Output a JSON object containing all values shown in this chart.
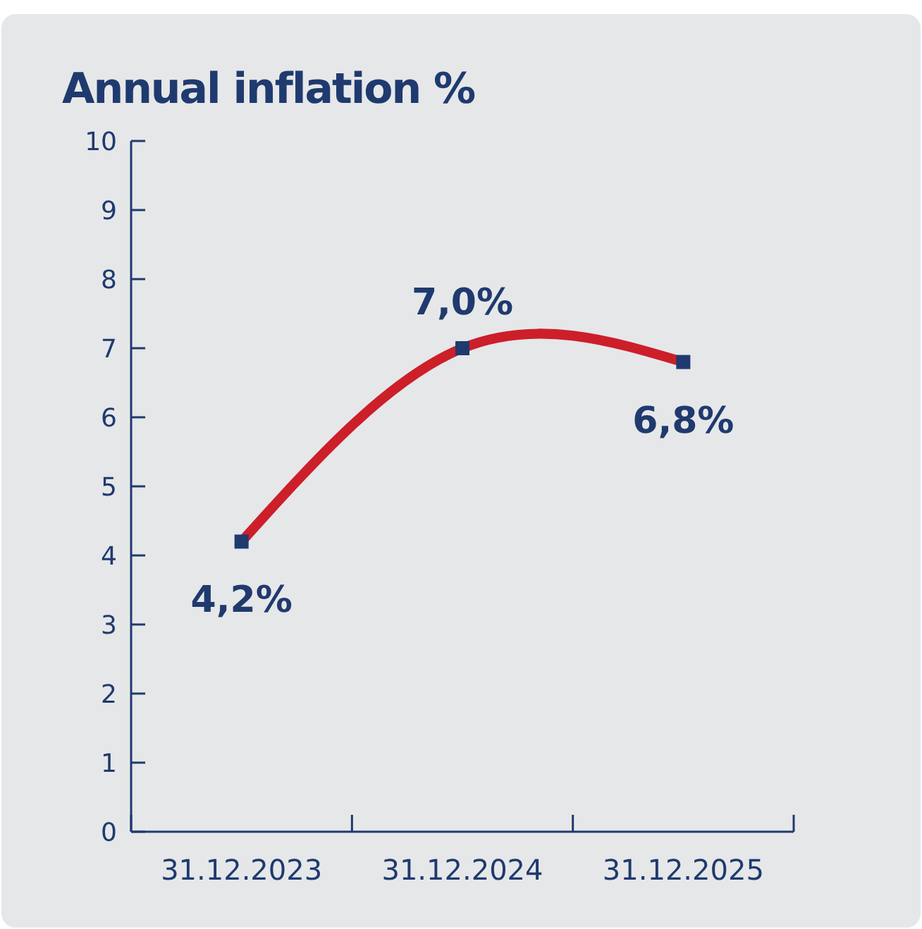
{
  "chart_data": {
    "type": "line",
    "title": "Annual inflation %",
    "categories": [
      "31.12.2023",
      "31.12.2024",
      "31.12.2025"
    ],
    "series": [
      {
        "color": "#cc1f2a",
        "values": [
          4.2,
          7.0,
          6.8
        ],
        "value_labels": [
          "4,2%",
          "7,0%",
          "6,8%"
        ]
      }
    ],
    "ylim": [
      0,
      10
    ],
    "yticks": [
      0,
      1,
      2,
      3,
      4,
      5,
      6,
      7,
      8,
      9,
      10
    ],
    "marker": "square",
    "line_style": "solid"
  }
}
